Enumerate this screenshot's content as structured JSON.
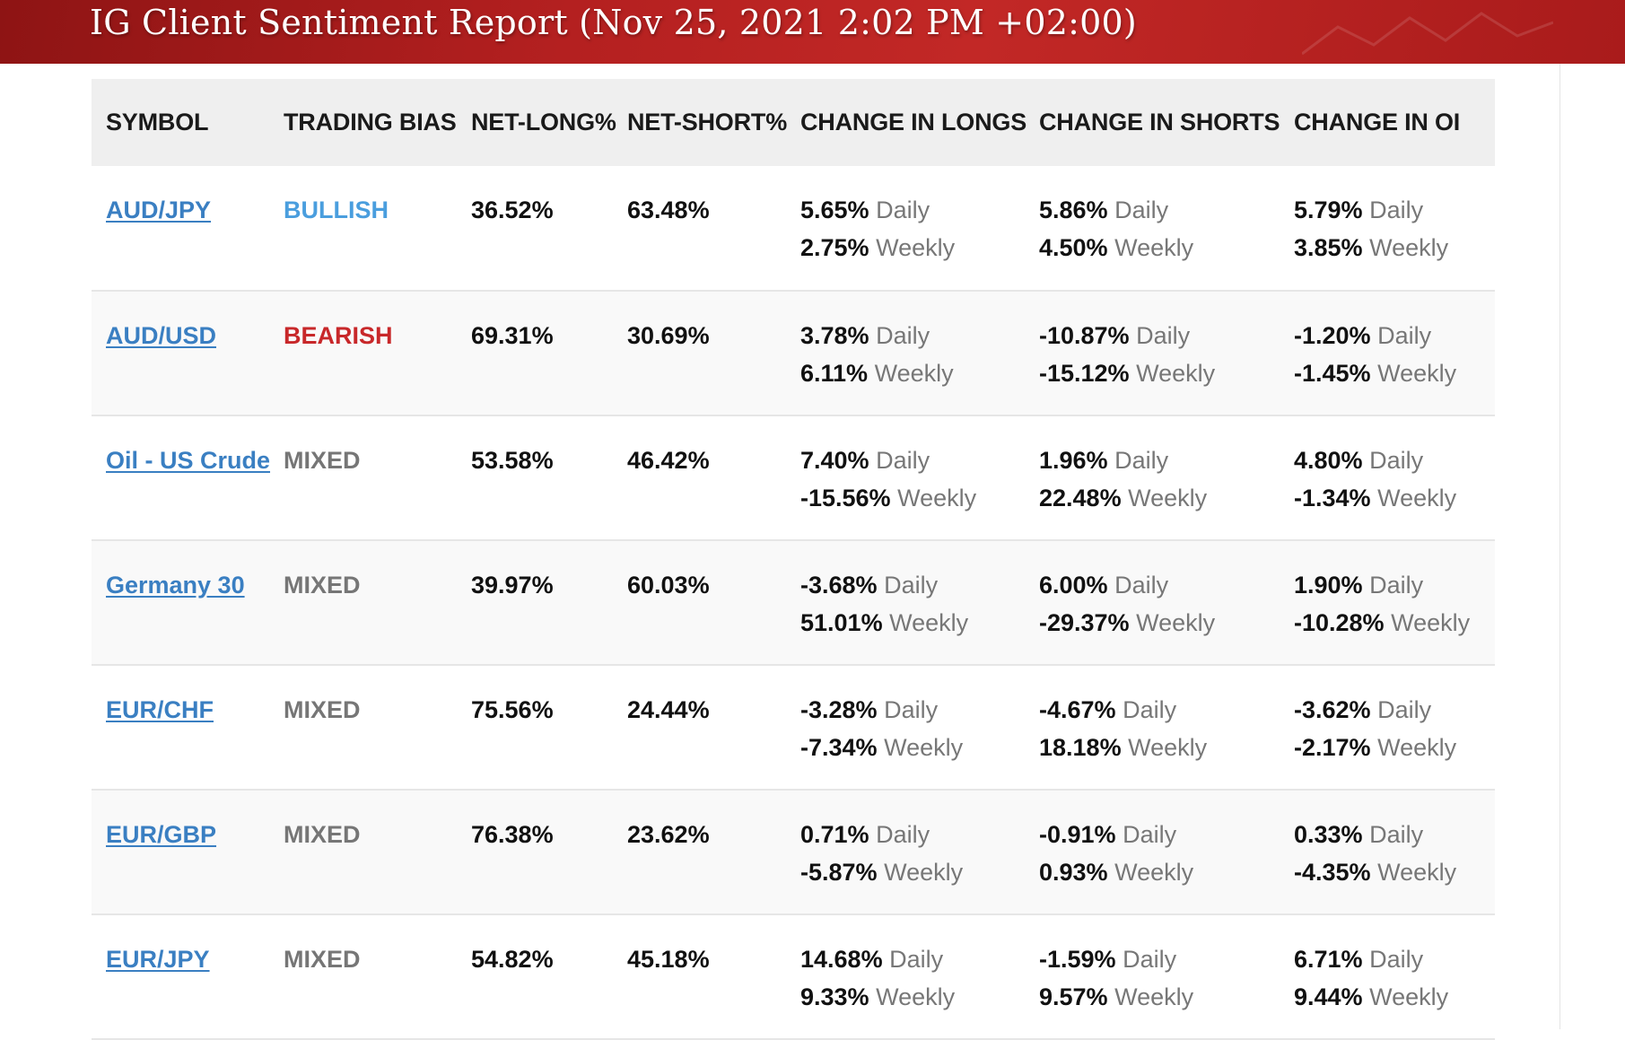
{
  "banner": {
    "title": "IG Client Sentiment Report (Nov 25, 2021 2:02 PM +02:00)"
  },
  "colors": {
    "banner_red": "#b42020",
    "link_blue": "#3a7fc2",
    "bullish": "#4a9ede",
    "bearish": "#c8282a",
    "mixed": "#767676"
  },
  "table": {
    "headers": [
      "SYMBOL",
      "TRADING BIAS",
      "NET-LONG%",
      "NET-SHORT%",
      "CHANGE IN LONGS",
      "CHANGE IN SHORTS",
      "CHANGE IN OI"
    ],
    "daily_label": "Daily",
    "weekly_label": "Weekly",
    "rows": [
      {
        "symbol": "AUD/JPY",
        "bias": "BULLISH",
        "bias_type": "bullish",
        "net_long": "36.52%",
        "net_short": "63.48%",
        "longs_daily": "5.65%",
        "longs_weekly": "2.75%",
        "shorts_daily": "5.86%",
        "shorts_weekly": "4.50%",
        "oi_daily": "5.79%",
        "oi_weekly": "3.85%"
      },
      {
        "symbol": "AUD/USD",
        "bias": "BEARISH",
        "bias_type": "bearish",
        "net_long": "69.31%",
        "net_short": "30.69%",
        "longs_daily": "3.78%",
        "longs_weekly": "6.11%",
        "shorts_daily": "-10.87%",
        "shorts_weekly": "-15.12%",
        "oi_daily": "-1.20%",
        "oi_weekly": "-1.45%"
      },
      {
        "symbol": "Oil - US Crude",
        "bias": "MIXED",
        "bias_type": "mixed",
        "net_long": "53.58%",
        "net_short": "46.42%",
        "longs_daily": "7.40%",
        "longs_weekly": "-15.56%",
        "shorts_daily": "1.96%",
        "shorts_weekly": "22.48%",
        "oi_daily": "4.80%",
        "oi_weekly": "-1.34%"
      },
      {
        "symbol": "Germany 30",
        "bias": "MIXED",
        "bias_type": "mixed",
        "net_long": "39.97%",
        "net_short": "60.03%",
        "longs_daily": "-3.68%",
        "longs_weekly": "51.01%",
        "shorts_daily": "6.00%",
        "shorts_weekly": "-29.37%",
        "oi_daily": "1.90%",
        "oi_weekly": "-10.28%"
      },
      {
        "symbol": "EUR/CHF",
        "bias": "MIXED",
        "bias_type": "mixed",
        "net_long": "75.56%",
        "net_short": "24.44%",
        "longs_daily": "-3.28%",
        "longs_weekly": "-7.34%",
        "shorts_daily": "-4.67%",
        "shorts_weekly": "18.18%",
        "oi_daily": "-3.62%",
        "oi_weekly": "-2.17%"
      },
      {
        "symbol": "EUR/GBP",
        "bias": "MIXED",
        "bias_type": "mixed",
        "net_long": "76.38%",
        "net_short": "23.62%",
        "longs_daily": "0.71%",
        "longs_weekly": "-5.87%",
        "shorts_daily": "-0.91%",
        "shorts_weekly": "0.93%",
        "oi_daily": "0.33%",
        "oi_weekly": "-4.35%"
      },
      {
        "symbol": "EUR/JPY",
        "bias": "MIXED",
        "bias_type": "mixed",
        "net_long": "54.82%",
        "net_short": "45.18%",
        "longs_daily": "14.68%",
        "longs_weekly": "9.33%",
        "shorts_daily": "-1.59%",
        "shorts_weekly": "9.57%",
        "oi_daily": "6.71%",
        "oi_weekly": "9.44%"
      }
    ]
  }
}
